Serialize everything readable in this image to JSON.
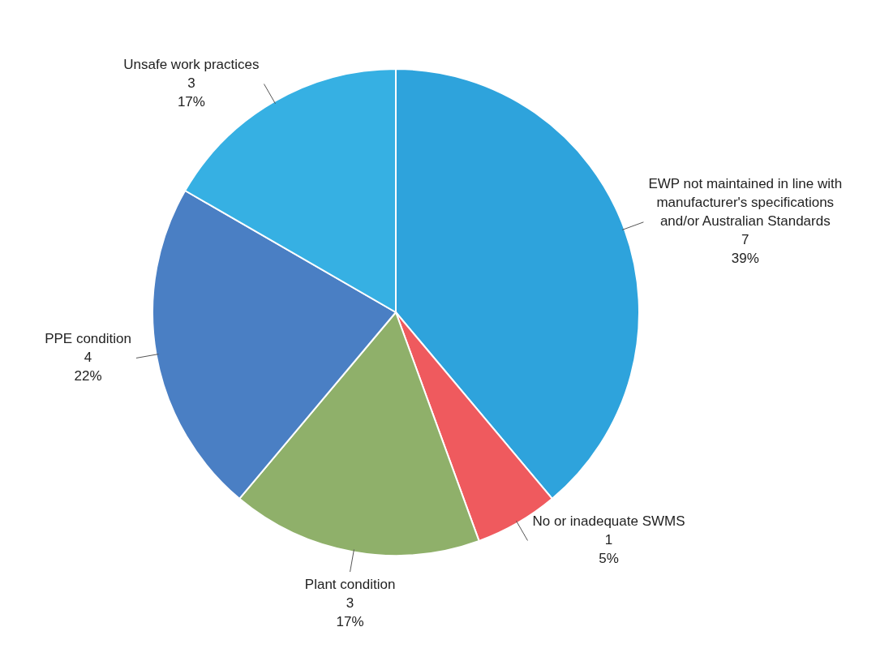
{
  "chart_data": {
    "type": "pie",
    "categories": [
      "EWP not maintained in line with manufacturer's specifications and/or Australian Standards",
      "No or inadequate SWMS",
      "Plant condition",
      "PPE condition",
      "Unsafe work practices"
    ],
    "values": [
      7,
      1,
      3,
      4,
      3
    ],
    "colors": [
      "#2ea3dc",
      "#ef5a5e",
      "#8fb06a",
      "#4a7fc4",
      "#36b0e3"
    ],
    "value_labels": [
      "7\n39%",
      "1\n5%",
      "3\n17%",
      "4\n22%",
      "3\n17%"
    ]
  }
}
